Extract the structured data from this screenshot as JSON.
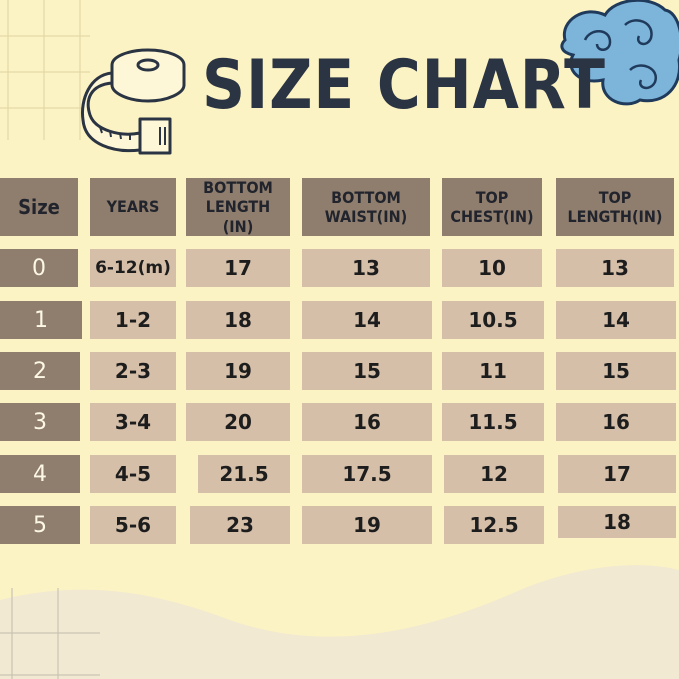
{
  "title": "SIZE CHART",
  "colors": {
    "background": "#fcf3c4",
    "header": "#8f7e6e",
    "cell": "#d5bfa9",
    "title": "#2b3443",
    "cloud": "#7cb4da"
  },
  "icons": {
    "tape": "measuring-tape-icon",
    "cloud": "cloud-decoration"
  },
  "table": {
    "headers": [
      "Size",
      "YEARS",
      "BOTTOM\nLENGTH (IN)",
      "BOTTOM\nWAIST(IN)",
      "TOP\nCHEST(IN)",
      "TOP\nLENGTH(IN)"
    ],
    "rows": [
      [
        "0",
        "6-12(m)",
        "17",
        "13",
        "10",
        "13"
      ],
      [
        "1",
        "1-2",
        "18",
        "14",
        "10.5",
        "14"
      ],
      [
        "2",
        "2-3",
        "19",
        "15",
        "11",
        "15"
      ],
      [
        "3",
        "3-4",
        "20",
        "16",
        "11.5",
        "16"
      ],
      [
        "4",
        "4-5",
        "21.5",
        "17.5",
        "12",
        "17"
      ],
      [
        "5",
        "5-6",
        "23",
        "19",
        "12.5",
        "18"
      ]
    ]
  }
}
